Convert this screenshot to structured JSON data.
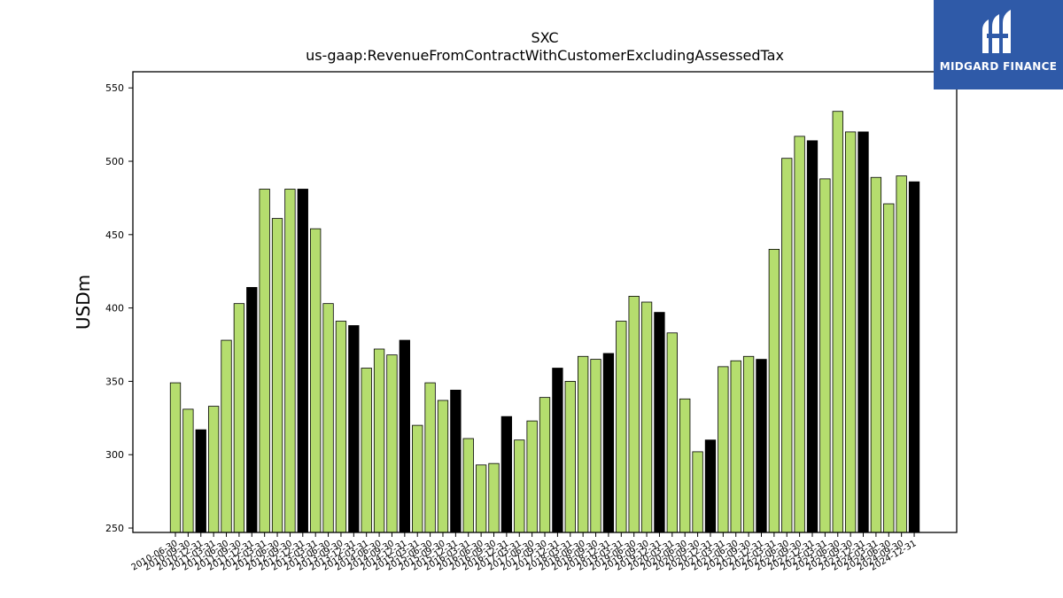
{
  "brand": {
    "name": "MIDGARD FINANCE",
    "bg_color": "#2f5aa8",
    "icon": "midgard-logo-icon"
  },
  "chart_data": {
    "type": "bar",
    "title": "SXC",
    "subtitle": "us-gaap:RevenueFromContractWithCustomerExcludingAssessedTax",
    "xlabel": "",
    "ylabel": "USDm",
    "ylim": [
      247,
      561
    ],
    "yticks": [
      250,
      300,
      350,
      400,
      450,
      500,
      550
    ],
    "grid": false,
    "colors": {
      "quarter": "#b5dd6e",
      "year_end": "#000000",
      "edge": "#000000"
    },
    "categories": [
      "2010-06-30",
      "2010-09-30",
      "2010-12-31",
      "2011-03-31",
      "2011-06-30",
      "2011-09-30",
      "2011-12-31",
      "2012-03-31",
      "2012-06-30",
      "2012-09-30",
      "2012-12-31",
      "2013-03-31",
      "2013-06-30",
      "2013-09-30",
      "2013-12-31",
      "2014-03-31",
      "2014-06-30",
      "2014-09-30",
      "2014-12-31",
      "2015-03-31",
      "2015-06-30",
      "2015-09-30",
      "2015-12-31",
      "2016-03-31",
      "2016-06-30",
      "2016-09-30",
      "2016-12-31",
      "2017-03-31",
      "2017-06-30",
      "2017-09-30",
      "2017-12-31",
      "2018-03-31",
      "2018-06-30",
      "2018-09-30",
      "2018-12-31",
      "2019-03-31",
      "2019-06-30",
      "2019-09-30",
      "2019-12-31",
      "2020-03-31",
      "2020-06-30",
      "2020-09-30",
      "2020-12-31",
      "2021-03-31",
      "2021-06-30",
      "2021-09-30",
      "2021-12-31",
      "2022-03-31",
      "2022-06-30",
      "2022-09-30",
      "2022-12-31",
      "2023-03-31",
      "2023-06-30",
      "2023-09-30",
      "2023-12-31",
      "2024-03-31",
      "2024-06-30",
      "2024-09-30",
      "2024-12-31"
    ],
    "values": [
      349,
      331,
      317,
      333,
      378,
      403,
      414,
      481,
      461,
      481,
      481,
      454,
      403,
      391,
      388,
      359,
      372,
      368,
      378,
      320,
      349,
      337,
      344,
      311,
      293,
      294,
      326,
      310,
      323,
      339,
      359,
      350,
      367,
      365,
      369,
      391,
      408,
      404,
      397,
      383,
      338,
      302,
      310,
      360,
      364,
      367,
      365,
      440,
      502,
      517,
      514,
      488,
      534,
      520,
      520,
      489,
      471,
      490,
      486
    ],
    "year_end": [
      false,
      false,
      true,
      false,
      false,
      false,
      true,
      false,
      false,
      false,
      true,
      false,
      false,
      false,
      true,
      false,
      false,
      false,
      true,
      false,
      false,
      false,
      true,
      false,
      false,
      false,
      true,
      false,
      false,
      false,
      true,
      false,
      false,
      false,
      true,
      false,
      false,
      false,
      true,
      false,
      false,
      false,
      true,
      false,
      false,
      false,
      true,
      false,
      false,
      false,
      true,
      false,
      false,
      false,
      true,
      false,
      false,
      false,
      true
    ]
  }
}
